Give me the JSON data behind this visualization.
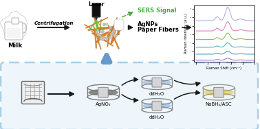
{
  "background_color": "#ffffff",
  "milk_label": "Milk",
  "centrifugation_label": "Centrifugation",
  "laser_label": "Laser",
  "sers_label": "SERS Signal",
  "agnps_label": "AgNPs",
  "paper_fibers_label": "Paper Fibers",
  "agno3_label": "AgNO₃",
  "ddh2o_label": "ddH₂O",
  "nabh4_label": "NaBH₄/ASC",
  "raman_x_label": "Raman Shift (cm⁻¹)",
  "raman_y_label": "Raman Intensity (a.u.)",
  "dashed_box_color": "#a8cfe8",
  "dashed_box_fill": "#eef6fc",
  "fiber_color": "#cc7722",
  "fiber_color2": "#cd853f",
  "arrow_color": "#1a1a1a",
  "green_arrow_color": "#4aaa44",
  "blue_arrow_color": "#6699cc",
  "raman_colors": [
    "#8855bb",
    "#3399cc",
    "#55bbaa",
    "#88cc55",
    "#dd66aa",
    "#8855bb"
  ],
  "agno3_dish_color": "#888888",
  "ddh2o_dish_color": "#aaccee",
  "nabh4_dish_color": "#e8d87a",
  "dish_rim_color": "#999999",
  "paper_roll_color": "#e0e0e0"
}
